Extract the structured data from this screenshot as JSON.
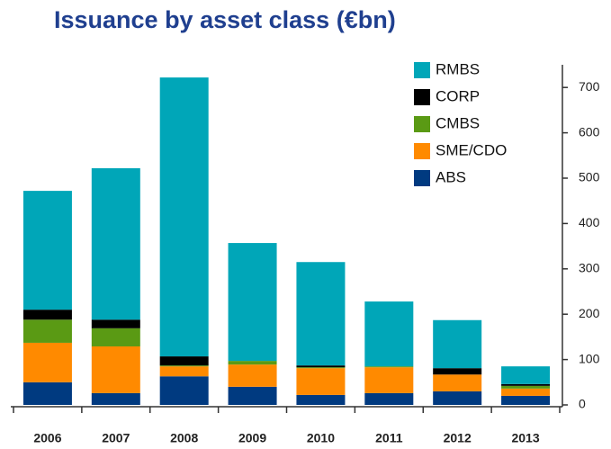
{
  "chart_data": {
    "type": "stacked_bar",
    "title": "Issuance by asset class (€bn)",
    "categories": [
      "2006",
      "2007",
      "2008",
      "2009",
      "2010",
      "2011",
      "2012",
      "2013"
    ],
    "series": [
      {
        "name": "ABS",
        "color": "#003a80",
        "values": [
          50,
          26,
          63,
          40,
          22,
          26,
          30,
          20
        ]
      },
      {
        "name": "SME/CDO",
        "color": "#ff8a00",
        "values": [
          87,
          103,
          22,
          49,
          59,
          57,
          37,
          16
        ]
      },
      {
        "name": "CMBS",
        "color": "#5a9a14",
        "values": [
          51,
          40,
          2,
          8,
          2,
          2,
          0,
          6
        ]
      },
      {
        "name": "CORP",
        "color": "#000000",
        "values": [
          22,
          19,
          20,
          0,
          4,
          0,
          14,
          4
        ]
      },
      {
        "name": "RMBS",
        "color": "#00a6b8",
        "values": [
          262,
          334,
          615,
          260,
          228,
          143,
          106,
          39
        ]
      }
    ],
    "ylim": [
      0,
      750
    ],
    "yticks": [
      0,
      100,
      200,
      300,
      400,
      500,
      600,
      700
    ],
    "y_axis_side": "right",
    "legend": "top-right",
    "grid": false
  }
}
